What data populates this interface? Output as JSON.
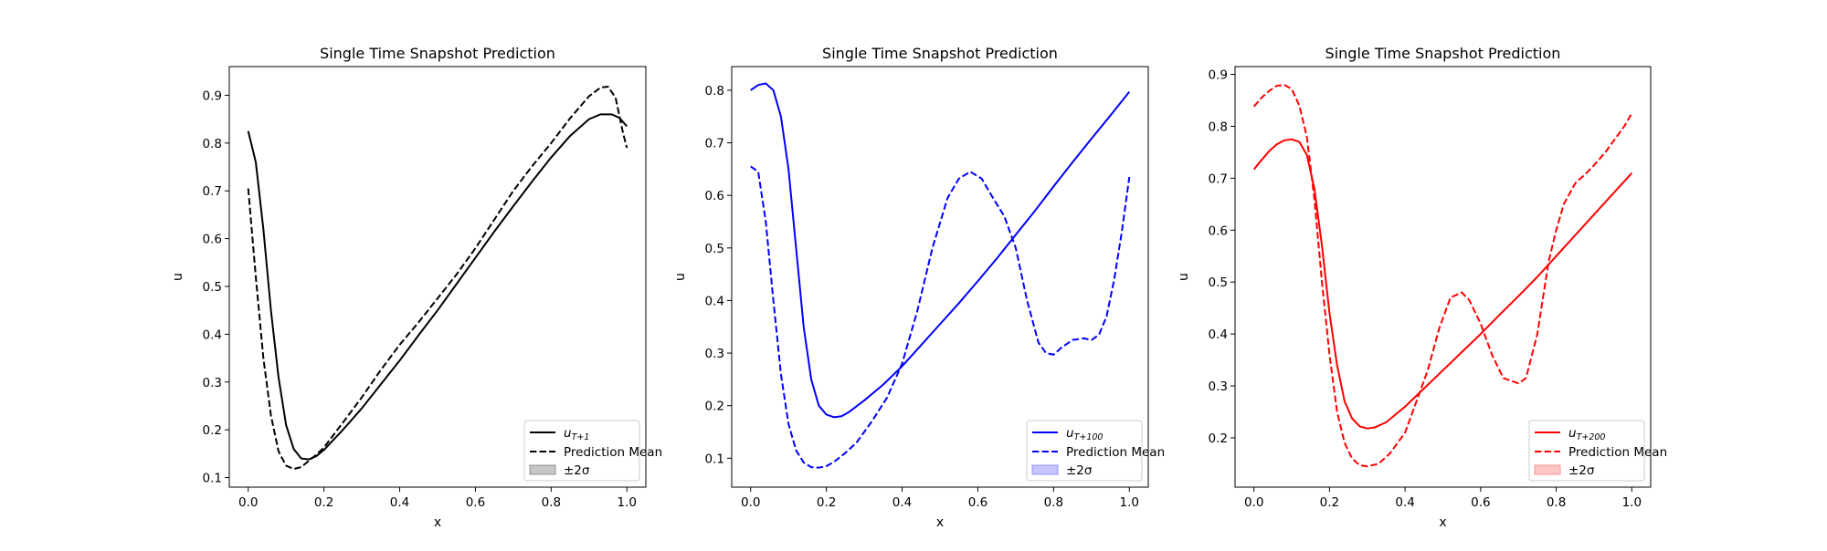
{
  "chart_data": [
    {
      "type": "line",
      "title": "Single Time Snapshot Prediction",
      "xlabel": "x",
      "ylabel": "u",
      "xlim": [
        -0.05,
        1.05
      ],
      "ylim": [
        0.08,
        0.96
      ],
      "xticks": [
        0.0,
        0.2,
        0.4,
        0.6,
        0.8,
        1.0
      ],
      "xtick_labels": [
        "0.0",
        "0.2",
        "0.4",
        "0.6",
        "0.8",
        "1.0"
      ],
      "yticks": [
        0.1,
        0.2,
        0.3,
        0.4,
        0.5,
        0.6,
        0.7,
        0.8,
        0.9
      ],
      "ytick_labels": [
        "0.1",
        "0.2",
        "0.3",
        "0.4",
        "0.5",
        "0.6",
        "0.7",
        "0.8",
        "0.9"
      ],
      "color": "#000000",
      "band_color": "#808080",
      "legend_position": "lower-right",
      "legend": {
        "truth_base": "u",
        "truth_sub": "T+1",
        "mean": "Prediction Mean",
        "band": "±2σ"
      },
      "series": [
        {
          "name": "u_{T+1}",
          "style": "solid",
          "x": [
            0,
            0.02,
            0.04,
            0.06,
            0.08,
            0.1,
            0.12,
            0.14,
            0.16,
            0.18,
            0.2,
            0.25,
            0.3,
            0.35,
            0.4,
            0.45,
            0.5,
            0.55,
            0.6,
            0.65,
            0.7,
            0.75,
            0.8,
            0.85,
            0.9,
            0.93,
            0.96,
            0.98,
            1.0
          ],
          "y": [
            0.825,
            0.76,
            0.62,
            0.45,
            0.31,
            0.21,
            0.16,
            0.14,
            0.138,
            0.145,
            0.158,
            0.2,
            0.245,
            0.295,
            0.345,
            0.398,
            0.45,
            0.505,
            0.56,
            0.615,
            0.668,
            0.72,
            0.77,
            0.815,
            0.85,
            0.86,
            0.86,
            0.853,
            0.835
          ]
        },
        {
          "name": "Prediction Mean",
          "style": "dashed",
          "x": [
            0,
            0.02,
            0.04,
            0.06,
            0.08,
            0.1,
            0.12,
            0.14,
            0.16,
            0.18,
            0.2,
            0.25,
            0.3,
            0.35,
            0.4,
            0.45,
            0.5,
            0.55,
            0.6,
            0.65,
            0.7,
            0.75,
            0.8,
            0.85,
            0.9,
            0.93,
            0.95,
            0.97,
            0.99,
            1.0
          ],
          "y": [
            0.705,
            0.52,
            0.35,
            0.23,
            0.155,
            0.125,
            0.118,
            0.122,
            0.135,
            0.148,
            0.163,
            0.215,
            0.268,
            0.325,
            0.378,
            0.425,
            0.475,
            0.525,
            0.58,
            0.64,
            0.7,
            0.752,
            0.8,
            0.852,
            0.898,
            0.916,
            0.918,
            0.895,
            0.82,
            0.79
          ]
        }
      ]
    },
    {
      "type": "line",
      "title": "Single Time Snapshot Prediction",
      "xlabel": "x",
      "ylabel": "u",
      "xlim": [
        -0.05,
        1.05
      ],
      "ylim": [
        0.045,
        0.845
      ],
      "xticks": [
        0.0,
        0.2,
        0.4,
        0.6,
        0.8,
        1.0
      ],
      "xtick_labels": [
        "0.0",
        "0.2",
        "0.4",
        "0.6",
        "0.8",
        "1.0"
      ],
      "yticks": [
        0.1,
        0.2,
        0.3,
        0.4,
        0.5,
        0.6,
        0.7,
        0.8
      ],
      "ytick_labels": [
        "0.1",
        "0.2",
        "0.3",
        "0.4",
        "0.5",
        "0.6",
        "0.7",
        "0.8"
      ],
      "color": "#0000ff",
      "band_color": "#8080ff",
      "legend_position": "lower-right",
      "legend": {
        "truth_base": "u",
        "truth_sub": "T+100",
        "mean": "Prediction Mean",
        "band": "±2σ"
      },
      "series": [
        {
          "name": "u_{T+100}",
          "style": "solid",
          "x": [
            0,
            0.02,
            0.04,
            0.06,
            0.08,
            0.1,
            0.12,
            0.14,
            0.16,
            0.18,
            0.2,
            0.22,
            0.24,
            0.26,
            0.3,
            0.35,
            0.4,
            0.45,
            0.5,
            0.55,
            0.6,
            0.65,
            0.7,
            0.75,
            0.8,
            0.85,
            0.9,
            0.95,
            1.0
          ],
          "y": [
            0.8,
            0.81,
            0.813,
            0.8,
            0.75,
            0.65,
            0.5,
            0.35,
            0.25,
            0.2,
            0.183,
            0.178,
            0.18,
            0.188,
            0.21,
            0.24,
            0.275,
            0.315,
            0.355,
            0.395,
            0.437,
            0.48,
            0.525,
            0.57,
            0.617,
            0.663,
            0.708,
            0.752,
            0.797
          ]
        },
        {
          "name": "Prediction Mean",
          "style": "dashed",
          "x": [
            0,
            0.02,
            0.04,
            0.06,
            0.08,
            0.1,
            0.12,
            0.14,
            0.16,
            0.18,
            0.2,
            0.22,
            0.25,
            0.28,
            0.32,
            0.36,
            0.4,
            0.44,
            0.48,
            0.52,
            0.55,
            0.58,
            0.61,
            0.64,
            0.67,
            0.7,
            0.73,
            0.76,
            0.78,
            0.8,
            0.82,
            0.85,
            0.88,
            0.9,
            0.92,
            0.94,
            0.96,
            0.98,
            1.0
          ],
          "y": [
            0.655,
            0.645,
            0.55,
            0.4,
            0.26,
            0.165,
            0.115,
            0.092,
            0.083,
            0.082,
            0.085,
            0.093,
            0.11,
            0.13,
            0.17,
            0.215,
            0.28,
            0.38,
            0.5,
            0.595,
            0.632,
            0.645,
            0.632,
            0.595,
            0.56,
            0.5,
            0.4,
            0.32,
            0.3,
            0.297,
            0.31,
            0.325,
            0.328,
            0.325,
            0.335,
            0.37,
            0.44,
            0.53,
            0.635
          ]
        }
      ]
    },
    {
      "type": "line",
      "title": "Single Time Snapshot Prediction",
      "xlabel": "x",
      "ylabel": "u",
      "xlim": [
        -0.05,
        1.05
      ],
      "ylim": [
        0.105,
        0.915
      ],
      "xticks": [
        0.0,
        0.2,
        0.4,
        0.6,
        0.8,
        1.0
      ],
      "xtick_labels": [
        "0.0",
        "0.2",
        "0.4",
        "0.6",
        "0.8",
        "1.0"
      ],
      "yticks": [
        0.2,
        0.3,
        0.4,
        0.5,
        0.6,
        0.7,
        0.8,
        0.9
      ],
      "ytick_labels": [
        "0.2",
        "0.3",
        "0.4",
        "0.5",
        "0.6",
        "0.7",
        "0.8",
        "0.9"
      ],
      "color": "#ff0000",
      "band_color": "#ff8080",
      "legend_position": "lower-right",
      "legend": {
        "truth_base": "u",
        "truth_sub": "T+200",
        "mean": "Prediction Mean",
        "band": "±2σ"
      },
      "series": [
        {
          "name": "u_{T+200}",
          "style": "solid",
          "x": [
            0,
            0.02,
            0.04,
            0.06,
            0.08,
            0.1,
            0.12,
            0.14,
            0.16,
            0.18,
            0.2,
            0.22,
            0.24,
            0.26,
            0.28,
            0.3,
            0.32,
            0.35,
            0.4,
            0.45,
            0.5,
            0.55,
            0.6,
            0.65,
            0.7,
            0.75,
            0.8,
            0.85,
            0.9,
            0.95,
            1.0
          ],
          "y": [
            0.717,
            0.735,
            0.752,
            0.765,
            0.773,
            0.775,
            0.77,
            0.745,
            0.68,
            0.57,
            0.44,
            0.34,
            0.27,
            0.237,
            0.222,
            0.218,
            0.22,
            0.23,
            0.26,
            0.295,
            0.33,
            0.365,
            0.4,
            0.437,
            0.473,
            0.51,
            0.55,
            0.59,
            0.63,
            0.67,
            0.71
          ]
        },
        {
          "name": "Prediction Mean",
          "style": "dashed",
          "x": [
            0,
            0.02,
            0.04,
            0.06,
            0.08,
            0.1,
            0.12,
            0.14,
            0.16,
            0.18,
            0.2,
            0.22,
            0.24,
            0.26,
            0.28,
            0.3,
            0.33,
            0.36,
            0.4,
            0.43,
            0.46,
            0.49,
            0.52,
            0.55,
            0.57,
            0.6,
            0.63,
            0.66,
            0.7,
            0.72,
            0.75,
            0.78,
            0.8,
            0.82,
            0.85,
            0.88,
            0.9,
            0.93,
            0.96,
            0.98,
            1.0
          ],
          "y": [
            0.838,
            0.855,
            0.868,
            0.878,
            0.88,
            0.872,
            0.84,
            0.78,
            0.66,
            0.5,
            0.36,
            0.25,
            0.19,
            0.16,
            0.147,
            0.145,
            0.15,
            0.17,
            0.21,
            0.27,
            0.33,
            0.41,
            0.47,
            0.48,
            0.465,
            0.42,
            0.36,
            0.315,
            0.305,
            0.315,
            0.4,
            0.54,
            0.6,
            0.65,
            0.69,
            0.71,
            0.725,
            0.75,
            0.78,
            0.8,
            0.825
          ]
        }
      ]
    }
  ]
}
